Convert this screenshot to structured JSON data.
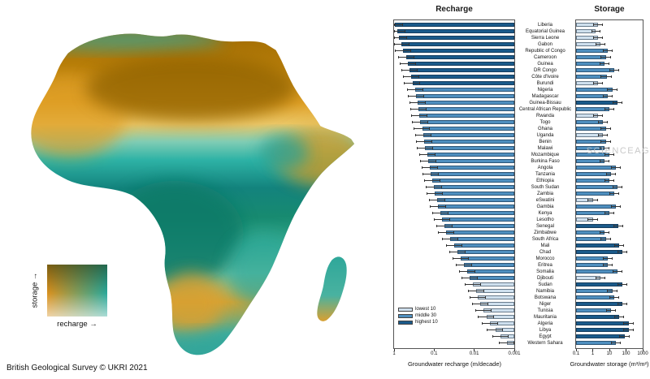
{
  "attribution": "British Geological Survey © UKRI 2021",
  "watermark": "SCIENCEAG",
  "map_legend": {
    "y_label": "storage",
    "x_label": "recharge",
    "arrow": "→"
  },
  "chart_data": {
    "type": "bar",
    "orientation": "horizontal",
    "err_factor": 1.6,
    "panels": [
      {
        "title": "Recharge",
        "xlabel": "Groundwater recharge (m/decade)",
        "ticks": [
          "1",
          "0.1",
          "0.01",
          "0.001"
        ],
        "log_min": -3,
        "log_max": 0,
        "reversed": true
      },
      {
        "title": "Storage",
        "xlabel": "Groundwater storage (m³/m²)",
        "ticks": [
          "0.1",
          "1",
          "10",
          "100",
          "1000"
        ],
        "log_min": -1,
        "log_max": 3,
        "reversed": false
      }
    ],
    "legend": [
      {
        "label": "lowest 10",
        "color": "#cfe0ee"
      },
      {
        "label": "middle 30",
        "color": "#4f8fbf"
      },
      {
        "label": "highest 10",
        "color": "#1a5a8a"
      }
    ],
    "rows": [
      {
        "country": "Liberia",
        "recharge": 0.95,
        "storage": 2,
        "s_lo": 1,
        "s_hi": 4
      },
      {
        "country": "Equatorial Guinea",
        "recharge": 0.85,
        "storage": 1.5,
        "s_lo": 0.8,
        "s_hi": 3
      },
      {
        "country": "Sierra Leone",
        "recharge": 0.75,
        "storage": 2,
        "s_lo": 1,
        "s_hi": 4
      },
      {
        "country": "Gabon",
        "recharge": 0.65,
        "storage": 3,
        "s_lo": 1.5,
        "s_hi": 6
      },
      {
        "country": "Republic of Congo",
        "recharge": 0.6,
        "storage": 8,
        "s_lo": 4,
        "s_hi": 16
      },
      {
        "country": "Cameroon",
        "recharge": 0.5,
        "storage": 6,
        "s_lo": 3,
        "s_hi": 12
      },
      {
        "country": "Guinea",
        "recharge": 0.45,
        "storage": 5,
        "s_lo": 2.5,
        "s_hi": 10
      },
      {
        "country": "DR Congo",
        "recharge": 0.42,
        "storage": 20,
        "s_lo": 10,
        "s_hi": 40
      },
      {
        "country": "Côte d'Ivoire",
        "recharge": 0.38,
        "storage": 7,
        "s_lo": 3,
        "s_hi": 14
      },
      {
        "country": "Burundi",
        "recharge": 0.35,
        "storage": 2,
        "s_lo": 1,
        "s_hi": 4
      },
      {
        "country": "Nigeria",
        "recharge": 0.3,
        "storage": 15,
        "s_lo": 7,
        "s_hi": 30
      },
      {
        "country": "Madagascar",
        "recharge": 0.28,
        "storage": 8,
        "s_lo": 4,
        "s_hi": 16
      },
      {
        "country": "Guinea-Bissau",
        "recharge": 0.26,
        "storage": 30,
        "s_lo": 15,
        "s_hi": 60
      },
      {
        "country": "Central African Republic",
        "recharge": 0.25,
        "storage": 10,
        "s_lo": 5,
        "s_hi": 20
      },
      {
        "country": "Rwanda",
        "recharge": 0.24,
        "storage": 2,
        "s_lo": 1,
        "s_hi": 4
      },
      {
        "country": "Togo",
        "recharge": 0.22,
        "storage": 4,
        "s_lo": 2,
        "s_hi": 8
      },
      {
        "country": "Ghana",
        "recharge": 0.2,
        "storage": 6,
        "s_lo": 3,
        "s_hi": 12
      },
      {
        "country": "Uganda",
        "recharge": 0.19,
        "storage": 4,
        "s_lo": 2,
        "s_hi": 8
      },
      {
        "country": "Benin",
        "recharge": 0.18,
        "storage": 6,
        "s_lo": 3,
        "s_hi": 12
      },
      {
        "country": "Malawi",
        "recharge": 0.17,
        "storage": 5,
        "s_lo": 2.5,
        "s_hi": 10
      },
      {
        "country": "Mozambique",
        "recharge": 0.15,
        "storage": 10,
        "s_lo": 5,
        "s_hi": 20
      },
      {
        "country": "Burkina Faso",
        "recharge": 0.14,
        "storage": 5,
        "s_lo": 2.5,
        "s_hi": 10
      },
      {
        "country": "Angola",
        "recharge": 0.13,
        "storage": 25,
        "s_lo": 12,
        "s_hi": 50
      },
      {
        "country": "Tanzania",
        "recharge": 0.12,
        "storage": 12,
        "s_lo": 6,
        "s_hi": 24
      },
      {
        "country": "Ethiopia",
        "recharge": 0.11,
        "storage": 10,
        "s_lo": 5,
        "s_hi": 20
      },
      {
        "country": "South Sudan",
        "recharge": 0.1,
        "storage": 30,
        "s_lo": 15,
        "s_hi": 60
      },
      {
        "country": "Zambia",
        "recharge": 0.095,
        "storage": 20,
        "s_lo": 10,
        "s_hi": 40
      },
      {
        "country": "eSwatini",
        "recharge": 0.085,
        "storage": 1,
        "s_lo": 0.5,
        "s_hi": 2
      },
      {
        "country": "Gambia",
        "recharge": 0.08,
        "storage": 25,
        "s_lo": 12,
        "s_hi": 50
      },
      {
        "country": "Kenya",
        "recharge": 0.07,
        "storage": 10,
        "s_lo": 5,
        "s_hi": 20
      },
      {
        "country": "Lesotho",
        "recharge": 0.065,
        "storage": 1,
        "s_lo": 0.5,
        "s_hi": 2
      },
      {
        "country": "Senegal",
        "recharge": 0.055,
        "storage": 35,
        "s_lo": 18,
        "s_hi": 70
      },
      {
        "country": "Zimbabwe",
        "recharge": 0.05,
        "storage": 5,
        "s_lo": 2.5,
        "s_hi": 10
      },
      {
        "country": "South Africa",
        "recharge": 0.04,
        "storage": 6,
        "s_lo": 3,
        "s_hi": 12
      },
      {
        "country": "Mali",
        "recharge": 0.032,
        "storage": 40,
        "s_lo": 20,
        "s_hi": 80
      },
      {
        "country": "Chad",
        "recharge": 0.026,
        "storage": 60,
        "s_lo": 30,
        "s_hi": 120
      },
      {
        "country": "Morocco",
        "recharge": 0.022,
        "storage": 8,
        "s_lo": 4,
        "s_hi": 16
      },
      {
        "country": "Eritrea",
        "recharge": 0.018,
        "storage": 8,
        "s_lo": 4,
        "s_hi": 16
      },
      {
        "country": "Somalia",
        "recharge": 0.015,
        "storage": 30,
        "s_lo": 15,
        "s_hi": 60
      },
      {
        "country": "Djibouti",
        "recharge": 0.013,
        "storage": 3,
        "s_lo": 1.5,
        "s_hi": 6
      },
      {
        "country": "Sudan",
        "recharge": 0.011,
        "storage": 60,
        "s_lo": 30,
        "s_hi": 120
      },
      {
        "country": "Namibia",
        "recharge": 0.009,
        "storage": 15,
        "s_lo": 7,
        "s_hi": 30
      },
      {
        "country": "Botswana",
        "recharge": 0.008,
        "storage": 20,
        "s_lo": 10,
        "s_hi": 40
      },
      {
        "country": "Niger",
        "recharge": 0.007,
        "storage": 60,
        "s_lo": 30,
        "s_hi": 120
      },
      {
        "country": "Tunisia",
        "recharge": 0.006,
        "storage": 12,
        "s_lo": 6,
        "s_hi": 24
      },
      {
        "country": "Mauritania",
        "recharge": 0.005,
        "storage": 40,
        "s_lo": 20,
        "s_hi": 80
      },
      {
        "country": "Algeria",
        "recharge": 0.004,
        "storage": 150,
        "s_lo": 70,
        "s_hi": 300
      },
      {
        "country": "Libya",
        "recharge": 0.003,
        "storage": 150,
        "s_lo": 70,
        "s_hi": 300
      },
      {
        "country": "Egypt",
        "recharge": 0.0022,
        "storage": 80,
        "s_lo": 40,
        "s_hi": 160
      },
      {
        "country": "Western Sahara",
        "recharge": 0.0015,
        "storage": 25,
        "s_lo": 12,
        "s_hi": 50
      }
    ]
  }
}
